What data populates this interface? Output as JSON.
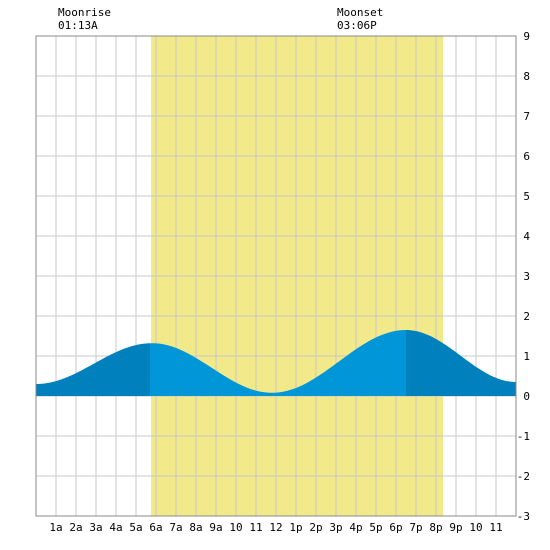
{
  "chart_data": {
    "type": "area",
    "moonrise": {
      "label": "Moonrise",
      "time": "01:13A"
    },
    "moonset": {
      "label": "Moonset",
      "time": "03:06P"
    },
    "x_tick_labels": [
      "1a",
      "2a",
      "3a",
      "4a",
      "5a",
      "6a",
      "7a",
      "8a",
      "9a",
      "10",
      "11",
      "12",
      "1p",
      "2p",
      "3p",
      "4p",
      "5p",
      "6p",
      "7p",
      "8p",
      "9p",
      "10",
      "11"
    ],
    "x_tick_hours": [
      1,
      2,
      3,
      4,
      5,
      6,
      7,
      8,
      9,
      10,
      11,
      12,
      13,
      14,
      15,
      16,
      17,
      18,
      19,
      20,
      21,
      22,
      23
    ],
    "xlim": [
      0,
      24
    ],
    "ylim": [
      -3,
      9
    ],
    "y_ticks": [
      -3,
      -2,
      -1,
      0,
      1,
      2,
      3,
      4,
      5,
      6,
      7,
      8,
      9
    ],
    "daylight": {
      "start_hour": 5.75,
      "end_hour": 20.35,
      "color": "#f2ea8a"
    },
    "tide_extremes": [
      {
        "hour": 0.0,
        "height": 0.3
      },
      {
        "hour": 5.8,
        "height": 1.32
      },
      {
        "hour": 11.8,
        "height": 0.08
      },
      {
        "hour": 18.5,
        "height": 1.65
      },
      {
        "hour": 24.0,
        "height": 0.35
      }
    ],
    "segments": [
      {
        "start_hour": 0.0,
        "end_hour": 5.7,
        "color": "#0080bd"
      },
      {
        "start_hour": 5.7,
        "end_hour": 18.5,
        "color": "#0096d8"
      },
      {
        "start_hour": 18.5,
        "end_hour": 24.0,
        "color": "#0080bd"
      }
    ],
    "grid": true
  }
}
